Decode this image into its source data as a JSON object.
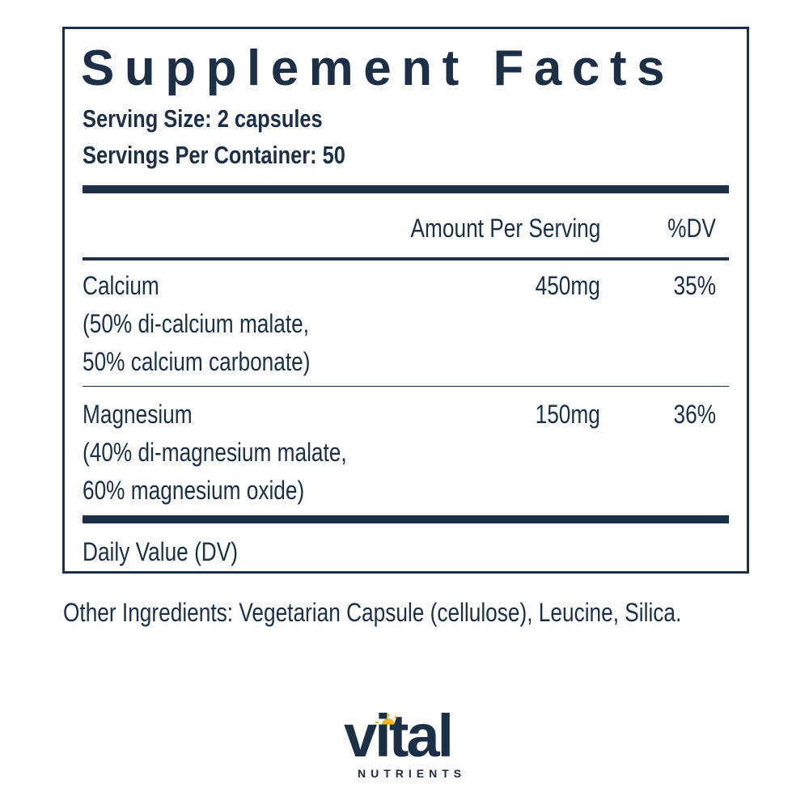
{
  "panel": {
    "title": "Supplement Facts",
    "serving_size": "Serving Size: 2 capsules",
    "servings_per_container": "Servings Per Container: 50",
    "header": {
      "amount": "Amount Per Serving",
      "dv": "%DV"
    },
    "rows": [
      {
        "name": "Calcium",
        "detail1": "(50% di-calcium malate,",
        "detail2": "50% calcium carbonate)",
        "amount": "450mg",
        "dv": "35%"
      },
      {
        "name": "Magnesium",
        "detail1": "(40% di-magnesium malate,",
        "detail2": "60% magnesium oxide)",
        "amount": "150mg",
        "dv": "36%"
      }
    ],
    "footnote": "Daily Value (DV)"
  },
  "other_ingredients": "Other Ingredients: Vegetarian Capsule (cellulose), Leucine, Silica.",
  "logo": {
    "word": "vital",
    "sub": "NUTRIENTS",
    "colors": {
      "text": "#1b2f47",
      "sun": "#f5b814"
    }
  }
}
